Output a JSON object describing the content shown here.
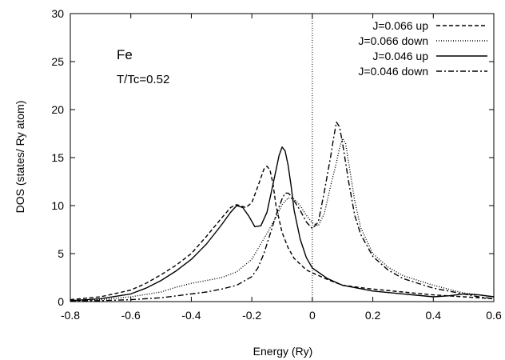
{
  "chart_data": {
    "type": "line",
    "title": "",
    "xlabel": "Energy  (Ry)",
    "ylabel": "DOS  (states/ Ry atom)",
    "xlim": [
      -0.8,
      0.6
    ],
    "ylim": [
      0,
      30
    ],
    "xticks": [
      -0.8,
      -0.6,
      -0.4,
      -0.2,
      0,
      0.2,
      0.4,
      0.6
    ],
    "xtick_labels": [
      "-0.8",
      "-0.6",
      "-0.4",
      "-0.2",
      "0",
      "0.2",
      "0.4",
      "0.6"
    ],
    "yticks": [
      0,
      5,
      10,
      15,
      20,
      25,
      30
    ],
    "ytick_labels": [
      "0",
      "5",
      "10",
      "15",
      "20",
      "25",
      "30"
    ],
    "grid": false,
    "legend_position": "top-right",
    "annotations": [
      "Fe",
      "T/Tc=0.52"
    ],
    "vertical_line_x": 0,
    "series": [
      {
        "name": "J=0.066 up",
        "style": "dashed",
        "x": [
          -0.8,
          -0.7,
          -0.6,
          -0.55,
          -0.5,
          -0.45,
          -0.4,
          -0.35,
          -0.3,
          -0.27,
          -0.25,
          -0.22,
          -0.2,
          -0.18,
          -0.16,
          -0.15,
          -0.14,
          -0.13,
          -0.12,
          -0.1,
          -0.08,
          -0.06,
          -0.04,
          -0.02,
          0,
          0.05,
          0.1,
          0.2,
          0.3,
          0.4,
          0.5,
          0.55,
          0.6
        ],
        "y": [
          0.2,
          0.5,
          1.2,
          1.9,
          2.8,
          3.8,
          5.0,
          6.8,
          8.7,
          9.8,
          10.1,
          9.8,
          10.3,
          12.0,
          13.8,
          14.1,
          13.7,
          12.3,
          10.0,
          7.2,
          5.6,
          4.5,
          3.9,
          3.3,
          3.0,
          2.3,
          1.7,
          1.3,
          1.0,
          0.7,
          0.5,
          0.4,
          0.3
        ]
      },
      {
        "name": "J=0.066 down",
        "style": "dotted",
        "x": [
          -0.8,
          -0.7,
          -0.6,
          -0.5,
          -0.45,
          -0.4,
          -0.35,
          -0.3,
          -0.25,
          -0.2,
          -0.15,
          -0.12,
          -0.1,
          -0.08,
          -0.06,
          -0.04,
          -0.02,
          0,
          0.02,
          0.04,
          0.06,
          0.08,
          0.09,
          0.1,
          0.11,
          0.12,
          0.14,
          0.16,
          0.2,
          0.25,
          0.3,
          0.4,
          0.5,
          0.55,
          0.6
        ],
        "y": [
          0.1,
          0.2,
          0.5,
          1.0,
          1.5,
          1.9,
          2.2,
          2.5,
          3.1,
          4.4,
          7.1,
          8.8,
          10.1,
          10.8,
          10.7,
          10.0,
          9.0,
          8.2,
          7.9,
          9.2,
          12.0,
          14.5,
          16.0,
          17.0,
          16.5,
          14.5,
          10.5,
          7.7,
          5.0,
          3.6,
          2.7,
          1.7,
          0.9,
          0.7,
          0.5
        ]
      },
      {
        "name": "J=0.046 up",
        "style": "solid",
        "x": [
          -0.8,
          -0.7,
          -0.6,
          -0.55,
          -0.5,
          -0.45,
          -0.4,
          -0.35,
          -0.3,
          -0.27,
          -0.25,
          -0.23,
          -0.21,
          -0.19,
          -0.17,
          -0.15,
          -0.13,
          -0.11,
          -0.1,
          -0.09,
          -0.08,
          -0.07,
          -0.06,
          -0.04,
          -0.02,
          0,
          0.05,
          0.1,
          0.2,
          0.3,
          0.4,
          0.45,
          0.5,
          0.55,
          0.6
        ],
        "y": [
          0.1,
          0.3,
          0.8,
          1.4,
          2.2,
          3.2,
          4.4,
          6.0,
          8.0,
          9.3,
          10.0,
          9.8,
          8.9,
          7.8,
          7.9,
          9.3,
          12.2,
          15.2,
          16.1,
          15.7,
          14.2,
          12.0,
          9.5,
          6.5,
          4.6,
          3.5,
          2.4,
          1.7,
          1.1,
          0.8,
          0.5,
          0.6,
          0.8,
          0.7,
          0.5
        ]
      },
      {
        "name": "J=0.046 down",
        "style": "dashdot",
        "x": [
          -0.8,
          -0.7,
          -0.6,
          -0.5,
          -0.45,
          -0.4,
          -0.35,
          -0.3,
          -0.25,
          -0.2,
          -0.18,
          -0.16,
          -0.14,
          -0.12,
          -0.1,
          -0.09,
          -0.08,
          -0.07,
          -0.06,
          -0.04,
          -0.02,
          0,
          0.02,
          0.04,
          0.06,
          0.07,
          0.08,
          0.09,
          0.1,
          0.12,
          0.14,
          0.16,
          0.2,
          0.25,
          0.3,
          0.4,
          0.5,
          0.55,
          0.6
        ],
        "y": [
          0.1,
          0.1,
          0.2,
          0.4,
          0.6,
          0.8,
          1.0,
          1.3,
          1.7,
          2.6,
          3.5,
          5.0,
          7.0,
          9.0,
          10.7,
          11.3,
          11.3,
          11.0,
          10.5,
          9.5,
          8.3,
          7.6,
          8.3,
          11.5,
          15.0,
          17.0,
          18.7,
          18.2,
          16.5,
          12.5,
          9.0,
          7.0,
          4.7,
          3.3,
          2.4,
          1.4,
          0.8,
          0.5,
          0.3
        ]
      }
    ]
  }
}
